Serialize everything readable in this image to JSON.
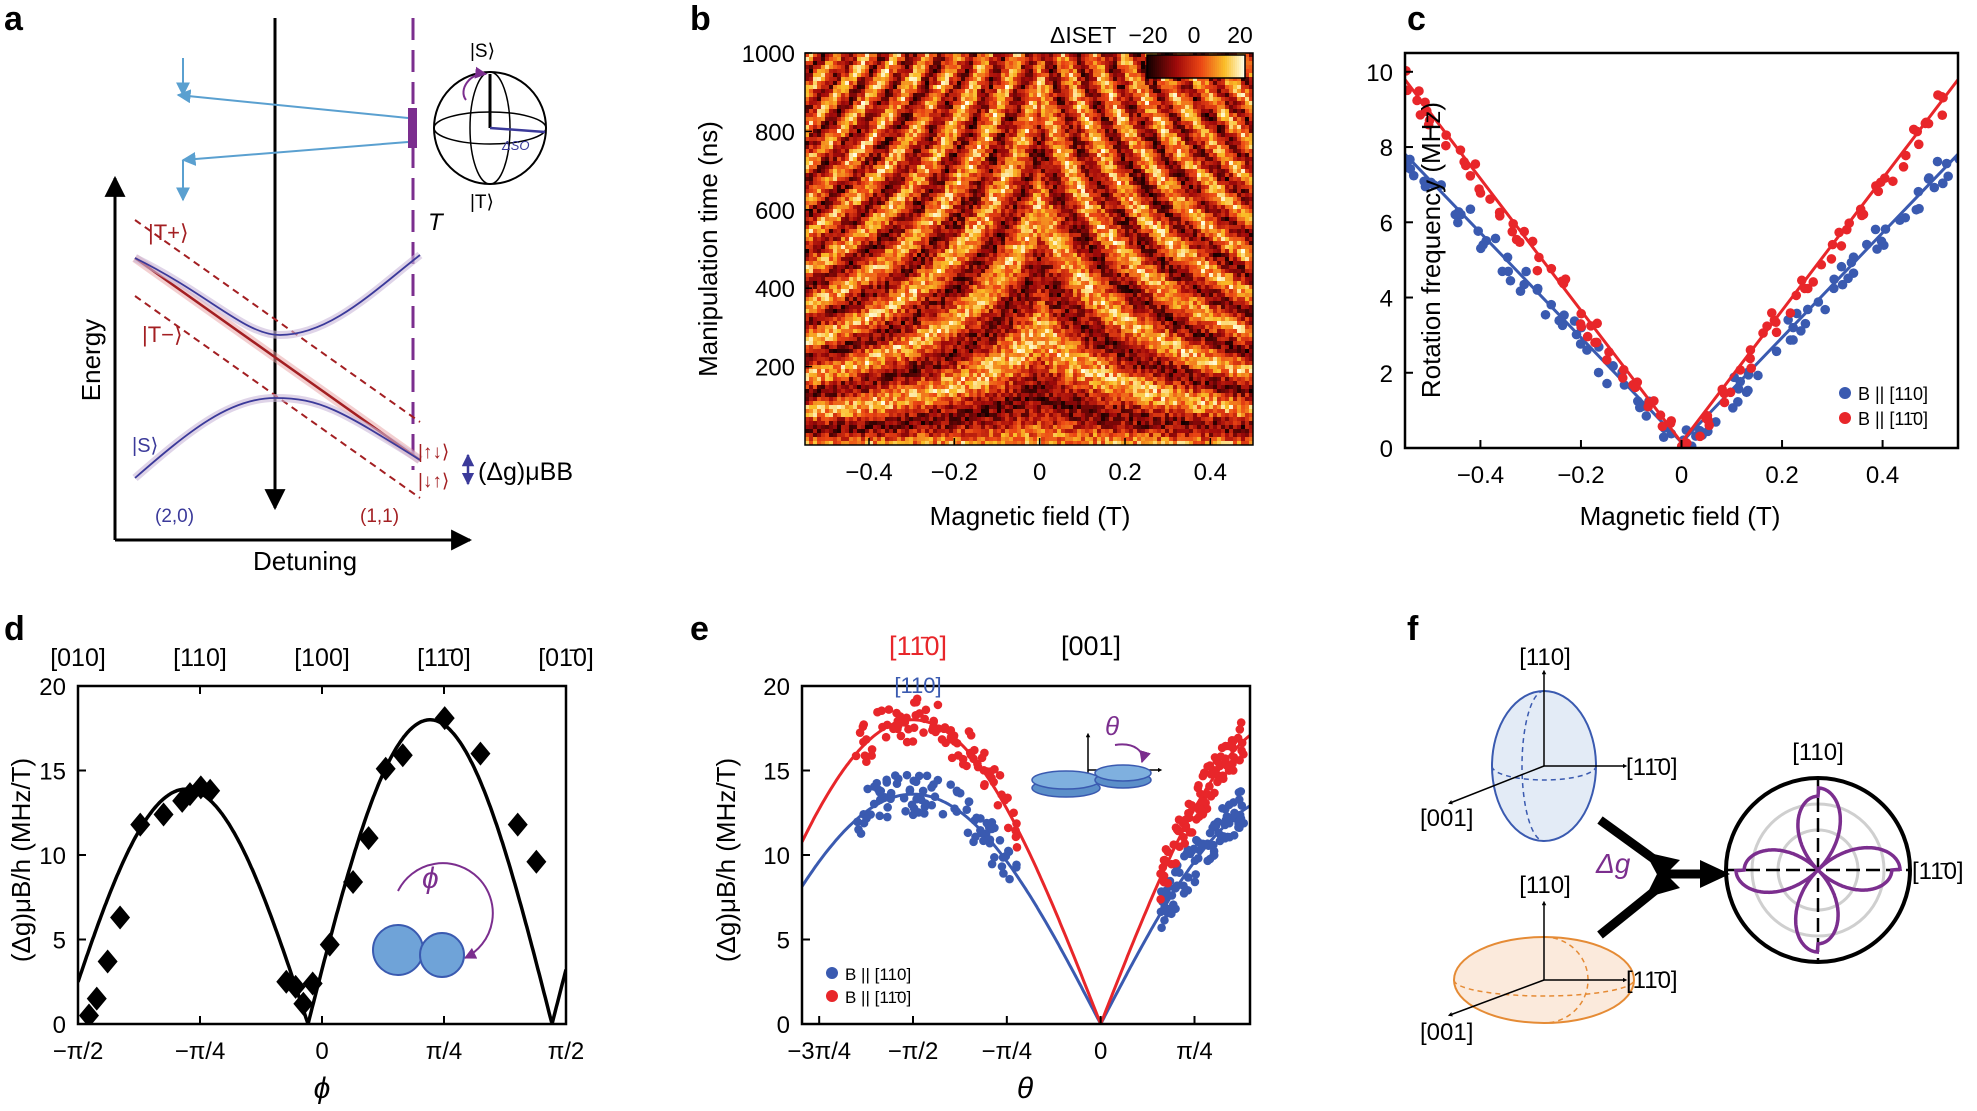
{
  "panels": {
    "a": "a",
    "b": "b",
    "c": "c",
    "d": "d",
    "e": "e",
    "f": "f"
  },
  "colors": {
    "red": "#e8262a",
    "blue": "#3a5ab0",
    "dark_red": "#a31f22",
    "purple": "#7b2e8e",
    "navy": "#3b3a9a",
    "cyan": "#5aa0d0",
    "ellipse_blue": "#e3ebf6",
    "ellipse_orange": "#fbeadc",
    "orange": "#e58b35"
  },
  "panel_a": {
    "ylabel": "Energy",
    "xlabel": "Detuning",
    "states": {
      "T_plus": "|T+⟩",
      "T_minus": "|T−⟩",
      "S": "|S⟩",
      "T_label": "T",
      "spin_up_down": "|↑↓⟩",
      "spin_down_up": "|↓↑⟩",
      "bloch_S": "|S⟩",
      "bloch_T": "|T⟩",
      "delta_so": "ΔSO"
    },
    "region_left": "(2,0)",
    "region_right": "(1,1)",
    "zeeman": "(Δg)μBB"
  },
  "panel_b": {
    "ylabel": "Manipulation time (ns)",
    "xlabel": "Magnetic field (T)",
    "colorbar_label": "ΔISET",
    "colorbar_ticks": [
      "−20",
      "0",
      "20"
    ],
    "yticks": [
      "1000",
      "800",
      "600",
      "400",
      "200"
    ],
    "xticks": [
      "−0.4",
      "−0.2",
      "0",
      "0.2",
      "0.4"
    ]
  },
  "chart_data": [
    {
      "panel": "c",
      "type": "scatter",
      "xlabel": "Magnetic field (T)",
      "ylabel": "Rotation frequency (MHz)",
      "xlim": [
        -0.55,
        0.55
      ],
      "ylim": [
        0,
        10.5
      ],
      "xticks": [
        "−0.4",
        "−0.2",
        "0",
        "0.2",
        "0.4"
      ],
      "yticks": [
        "0",
        "2",
        "4",
        "6",
        "8",
        "10"
      ],
      "series": [
        {
          "name": "B || [110]",
          "color": "#3a5ab0",
          "fit_slope": 14.2,
          "x": [
            -0.54,
            -0.5,
            -0.45,
            -0.4,
            -0.35,
            -0.3,
            -0.25,
            -0.2,
            -0.15,
            -0.1,
            -0.05,
            0,
            0.05,
            0.1,
            0.15,
            0.2,
            0.25,
            0.3,
            0.35,
            0.4,
            0.45,
            0.5,
            0.54
          ],
          "y": [
            8.0,
            7.2,
            6.4,
            5.7,
            5.0,
            4.2,
            3.5,
            2.7,
            1.9,
            1.2,
            0.6,
            0.1,
            0.7,
            1.3,
            2.0,
            2.8,
            3.5,
            4.2,
            5.0,
            5.7,
            6.5,
            7.2,
            7.6
          ]
        },
        {
          "name": "B || [1-10]",
          "color": "#e8262a",
          "fit_slope": 17.8,
          "x": [
            -0.54,
            -0.5,
            -0.45,
            -0.4,
            -0.35,
            -0.3,
            -0.25,
            -0.2,
            -0.15,
            -0.1,
            -0.05,
            0,
            0.05,
            0.1,
            0.15,
            0.2,
            0.25,
            0.3,
            0.35,
            0.4,
            0.45,
            0.5,
            0.54
          ],
          "y": [
            9.8,
            8.9,
            8.0,
            7.1,
            6.3,
            5.4,
            4.4,
            3.6,
            2.7,
            1.8,
            0.9,
            0.4,
            0.9,
            1.8,
            2.8,
            3.6,
            4.5,
            5.4,
            6.3,
            7.2,
            8.0,
            8.9,
            9.5
          ]
        }
      ],
      "legend": [
        "B || [110]",
        "B || [11̄0]"
      ],
      "legend_position": "bottom-right"
    },
    {
      "panel": "d",
      "type": "scatter",
      "xlabel": "ϕ",
      "ylabel": "(Δg)μB/h (MHz/T)",
      "xlim": [
        -1.5708,
        1.5708
      ],
      "ylim": [
        0,
        20
      ],
      "xticks": [
        "−π/2",
        "−π/4",
        "0",
        "π/4",
        "π/2"
      ],
      "yticks": [
        "0",
        "5",
        "10",
        "15",
        "20"
      ],
      "top_ticks": [
        "[010]",
        "[110]",
        "[100]",
        "[11̄0]",
        "[01̄0]"
      ],
      "phi_symbol": "ϕ",
      "x": [
        -1.5,
        -1.45,
        -1.38,
        -1.3,
        -1.17,
        -1.02,
        -0.9,
        -0.85,
        -0.78,
        -0.72,
        -0.23,
        -0.17,
        -0.12,
        -0.06,
        0.05,
        0.2,
        0.3,
        0.41,
        0.52,
        0.79,
        1.02,
        1.26,
        1.38
      ],
      "y": [
        0.5,
        1.5,
        3.7,
        6.3,
        11.8,
        12.4,
        13.2,
        13.6,
        14.0,
        13.8,
        2.5,
        2.2,
        1.2,
        2.4,
        4.7,
        8.4,
        11.0,
        15.1,
        15.9,
        18.1,
        16.0,
        11.8,
        9.6
      ]
    },
    {
      "panel": "e",
      "type": "scatter",
      "xlabel": "θ",
      "ylabel": "(Δg)μB/h (MHz/T)",
      "xlim": [
        -2.5,
        1.25
      ],
      "ylim": [
        0,
        20
      ],
      "xticks": [
        "−3π/4",
        "−π/2",
        "−π/4",
        "0",
        "π/4"
      ],
      "yticks": [
        "0",
        "5",
        "10",
        "15",
        "20"
      ],
      "top_red": "[11̄0]",
      "top_blue": "[110]",
      "top_black": "[001]",
      "theta_symbol": "θ",
      "series": [
        {
          "name": "B || [110]",
          "color": "#3a5ab0",
          "amplitude": 13.6
        },
        {
          "name": "B || [1-10]",
          "color": "#e8262a",
          "amplitude": 18.0
        }
      ],
      "legend": [
        "B || [110]",
        "B || [11̄0]"
      ],
      "legend_position": "bottom-left"
    }
  ],
  "panel_f": {
    "axis_110": "[110]",
    "axis_1m10": "[11̄0]",
    "axis_001": "[001]",
    "delta_g": "Δg"
  }
}
